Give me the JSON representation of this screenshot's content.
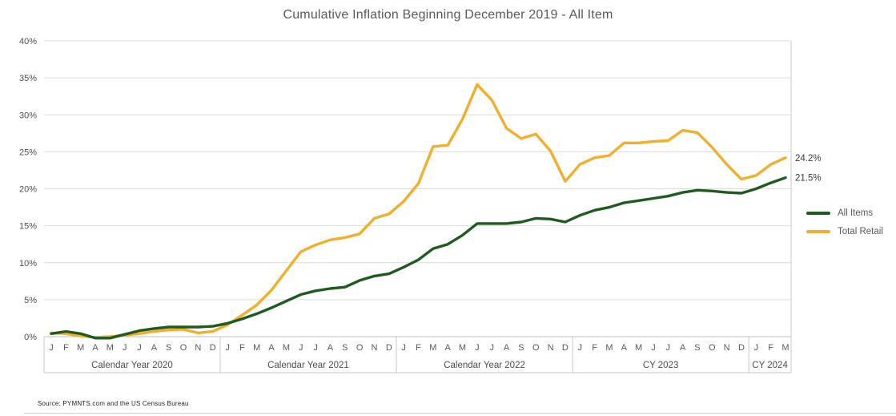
{
  "title": "Cumulative Inflation Beginning December 2019 - All Item",
  "source": "Source: PYMNTS.com and the US Census Bureau",
  "legend": [
    {
      "label": "All Items",
      "color": "#1f5b21"
    },
    {
      "label": "Total Retail",
      "color": "#f0b02c"
    }
  ],
  "end_labels": [
    {
      "series": "Total Retail",
      "text": "24.2%"
    },
    {
      "series": "All Items",
      "text": "21.5%"
    }
  ],
  "chart_data": {
    "type": "line",
    "title": "Cumulative Inflation Beginning December 2019 - All Item",
    "xlabel": "",
    "ylabel": "",
    "grid": true,
    "legend_position": "right",
    "y_axis": {
      "min": 0,
      "max": 40,
      "step": 5,
      "suffix": "%"
    },
    "months": [
      "J",
      "F",
      "M",
      "A",
      "M",
      "J",
      "J",
      "A",
      "S",
      "O",
      "N",
      "D",
      "J",
      "F",
      "M",
      "A",
      "M",
      "J",
      "J",
      "A",
      "S",
      "O",
      "N",
      "D",
      "J",
      "F",
      "M",
      "A",
      "M",
      "J",
      "J",
      "A",
      "S",
      "O",
      "N",
      "D",
      "J",
      "F",
      "M",
      "A",
      "M",
      "J",
      "J",
      "A",
      "S",
      "O",
      "N",
      "D",
      "J",
      "F",
      "M"
    ],
    "year_groups": [
      {
        "label": "Calendar Year 2020",
        "months": 12
      },
      {
        "label": "Calendar Year 2021",
        "months": 12
      },
      {
        "label": "Calendar Year 2022",
        "months": 12
      },
      {
        "label": "CY 2023",
        "months": 12
      },
      {
        "label": "CY 2024",
        "months": 3
      }
    ],
    "series": [
      {
        "name": "Total Retail",
        "color": "#f0b02c",
        "values": [
          0.5,
          0.4,
          0.1,
          -0.1,
          0.0,
          0.2,
          0.4,
          0.7,
          0.9,
          1.0,
          0.5,
          0.7,
          1.6,
          2.9,
          4.3,
          6.3,
          8.9,
          11.5,
          12.4,
          13.1,
          13.4,
          13.9,
          16.0,
          16.6,
          18.3,
          20.7,
          25.7,
          25.9,
          29.4,
          34.1,
          32.0,
          28.2,
          26.8,
          27.4,
          25.1,
          21.0,
          23.3,
          24.2,
          24.5,
          26.2,
          26.2,
          26.4,
          26.5,
          27.9,
          27.6,
          25.6,
          23.3,
          21.3,
          21.8,
          23.3,
          24.2
        ]
      },
      {
        "name": "All Items",
        "color": "#1f5b21",
        "values": [
          0.4,
          0.7,
          0.4,
          -0.2,
          -0.2,
          0.3,
          0.8,
          1.1,
          1.3,
          1.3,
          1.3,
          1.4,
          1.8,
          2.4,
          3.1,
          3.9,
          4.8,
          5.7,
          6.2,
          6.5,
          6.7,
          7.6,
          8.2,
          8.5,
          9.4,
          10.4,
          11.9,
          12.5,
          13.7,
          15.3,
          15.3,
          15.3,
          15.5,
          16.0,
          15.9,
          15.5,
          16.4,
          17.1,
          17.5,
          18.1,
          18.4,
          18.7,
          19.0,
          19.5,
          19.8,
          19.7,
          19.5,
          19.4,
          20.0,
          20.8,
          21.5
        ]
      }
    ]
  }
}
